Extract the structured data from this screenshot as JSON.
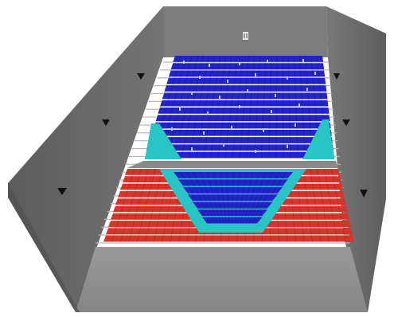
{
  "scene": {
    "colors": {
      "background": "#ffffff",
      "wall_left": "#6a6a6a",
      "wall_right": "#6c6c6c",
      "back_wall": "#7b7b7b",
      "floor": "#8e8e8e",
      "floor_dark": "#7d7d7d",
      "stair_line": "#b7b7b7",
      "seat_blue": "#2323c8",
      "seat_blue_dark": "#1818a0",
      "seat_cyan": "#29c4c4",
      "seat_red": "#d8332b",
      "seat_red_dark": "#a72520",
      "speaker": "#111111"
    },
    "seats_label_count": 0
  }
}
